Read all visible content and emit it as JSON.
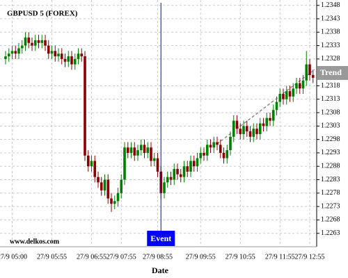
{
  "chart_data": {
    "type": "candlestick",
    "title": "GBPUSD 5 (FOREX)",
    "x_label": "Date",
    "watermark": "www.delkos.com",
    "event": {
      "index": 47,
      "label": "Event",
      "color": "#0000ff"
    },
    "trend_label": "Trend",
    "up_color": "#008000",
    "down_color": "#8b0000",
    "grid": true,
    "ylim": [
      1.2258,
      1.235
    ],
    "yticks": [
      1.2263,
      1.2268,
      1.2273,
      1.2278,
      1.2283,
      1.2288,
      1.2293,
      1.2298,
      1.2303,
      1.2308,
      1.2313,
      1.2318,
      1.2328,
      1.2333,
      1.2338,
      1.2343,
      1.2348
    ],
    "categories": [
      null,
      null,
      "27/9 05:00",
      null,
      null,
      null,
      null,
      null,
      null,
      null,
      null,
      null,
      null,
      null,
      "27/9 05:55",
      null,
      null,
      null,
      null,
      null,
      null,
      null,
      null,
      null,
      null,
      null,
      "27/9 06:55",
      null,
      null,
      null,
      null,
      null,
      null,
      null,
      null,
      "27/9 07:55",
      null,
      null,
      null,
      null,
      null,
      null,
      null,
      null,
      null,
      null,
      "27/9 08:55",
      null,
      null,
      null,
      null,
      null,
      null,
      null,
      null,
      null,
      null,
      null,
      null,
      "27/9 09:55",
      null,
      null,
      null,
      null,
      null,
      null,
      null,
      null,
      null,
      null,
      null,
      "27/9 10:55",
      null,
      null,
      null,
      null,
      null,
      null,
      null,
      null,
      null,
      null,
      null,
      "27/9 11:55",
      null,
      null,
      null,
      null,
      null,
      null,
      null,
      null,
      "27/9 12:55",
      null
    ],
    "open": [
      1.2328,
      1.2329,
      1.233,
      1.2331,
      1.233,
      1.2332,
      1.2333,
      1.2336,
      1.2334,
      1.2333,
      1.2335,
      1.2334,
      1.2335,
      1.2333,
      1.233,
      1.2331,
      1.2329,
      1.233,
      1.2328,
      1.2327,
      1.2329,
      1.2326,
      1.2328,
      1.233,
      1.2329,
      1.2292,
      1.2288,
      1.229,
      1.2284,
      1.2282,
      1.2279,
      1.2283,
      1.2276,
      1.2274,
      1.2275,
      1.2278,
      1.2283,
      1.2295,
      1.2293,
      1.2295,
      1.2292,
      1.2294,
      1.2296,
      1.2293,
      1.2295,
      1.229,
      1.2291,
      1.2286,
      1.2278,
      1.2282,
      1.2284,
      1.2283,
      1.2287,
      1.2285,
      1.2284,
      1.2288,
      1.2286,
      1.229,
      1.2288,
      1.2291,
      1.2293,
      1.2292,
      1.2296,
      1.2295,
      1.2297,
      1.2296,
      1.2293,
      1.2291,
      1.2294,
      1.2299,
      1.2305,
      1.2302,
      1.23,
      1.2303,
      1.2301,
      1.2299,
      1.2302,
      1.23,
      1.2304,
      1.2303,
      1.2306,
      1.2305,
      1.2309,
      1.2312,
      1.2315,
      1.2313,
      1.2316,
      1.2314,
      1.2317,
      1.2319,
      1.2317,
      1.232,
      1.2326,
      1.2322
    ],
    "high": [
      1.2331,
      1.2332,
      1.2333,
      1.2333,
      1.2334,
      1.2335,
      1.2338,
      1.2338,
      1.2336,
      1.2337,
      1.2337,
      1.2337,
      1.2337,
      1.2335,
      1.2333,
      1.2333,
      1.2332,
      1.2332,
      1.233,
      1.2331,
      1.2331,
      1.233,
      1.2332,
      1.2332,
      1.2331,
      1.2294,
      1.2292,
      1.2292,
      1.2286,
      1.2284,
      1.2285,
      1.2285,
      1.2278,
      1.2277,
      1.228,
      1.2285,
      1.2297,
      1.2297,
      1.2297,
      1.2297,
      1.2296,
      1.2298,
      1.2298,
      1.2297,
      1.2297,
      1.2293,
      1.2293,
      1.2288,
      1.2284,
      1.2286,
      1.2286,
      1.2289,
      1.2289,
      1.2287,
      1.229,
      1.229,
      1.2292,
      1.2292,
      1.2293,
      1.2295,
      1.2295,
      1.2298,
      1.2298,
      1.2299,
      1.2299,
      1.2298,
      1.2295,
      1.2296,
      1.2301,
      1.2307,
      1.2307,
      1.2304,
      1.2305,
      1.2305,
      1.2303,
      1.2304,
      1.2304,
      1.2306,
      1.2306,
      1.2308,
      1.2308,
      1.2311,
      1.2314,
      1.2317,
      1.2317,
      1.2318,
      1.2318,
      1.2319,
      1.2321,
      1.2321,
      1.2322,
      1.2331,
      1.2328,
      1.2324
    ],
    "low": [
      1.2326,
      1.2327,
      1.2328,
      1.2328,
      1.2328,
      1.233,
      1.2331,
      1.2332,
      1.2331,
      1.2331,
      1.2332,
      1.2332,
      1.2331,
      1.2328,
      1.2328,
      1.2327,
      1.2327,
      1.2326,
      1.2325,
      1.2325,
      1.2324,
      1.2324,
      1.2326,
      1.2327,
      1.229,
      1.2286,
      1.2286,
      1.2282,
      1.228,
      1.2277,
      1.2277,
      1.2274,
      1.2271,
      1.2272,
      1.2273,
      1.2276,
      1.2281,
      1.2291,
      1.2291,
      1.229,
      1.229,
      1.2292,
      1.2291,
      1.2291,
      1.2288,
      1.2288,
      1.2284,
      1.2276,
      1.2276,
      1.228,
      1.2281,
      1.2281,
      1.2283,
      1.2282,
      1.2282,
      1.2284,
      1.2284,
      1.2286,
      1.2286,
      1.2289,
      1.229,
      1.229,
      1.2293,
      1.2293,
      1.2294,
      1.2291,
      1.2289,
      1.2289,
      1.2292,
      1.2297,
      1.23,
      1.2298,
      1.2298,
      1.2299,
      1.2297,
      1.2297,
      1.2298,
      1.2298,
      1.2301,
      1.2301,
      1.2303,
      1.2303,
      1.2307,
      1.231,
      1.2311,
      1.2311,
      1.2312,
      1.2312,
      1.2315,
      1.2315,
      1.2315,
      1.2318,
      1.232,
      1.2319
    ],
    "close": [
      1.2329,
      1.233,
      1.2331,
      1.233,
      1.2332,
      1.2333,
      1.2336,
      1.2334,
      1.2333,
      1.2335,
      1.2334,
      1.2335,
      1.2333,
      1.233,
      1.2331,
      1.2329,
      1.233,
      1.2328,
      1.2327,
      1.2329,
      1.2326,
      1.2328,
      1.233,
      1.2329,
      1.2292,
      1.2288,
      1.229,
      1.2284,
      1.2282,
      1.2279,
      1.2283,
      1.2276,
      1.2274,
      1.2275,
      1.2278,
      1.2283,
      1.2295,
      1.2293,
      1.2295,
      1.2292,
      1.2294,
      1.2296,
      1.2293,
      1.2295,
      1.229,
      1.2291,
      1.2286,
      1.2278,
      1.2282,
      1.2284,
      1.2283,
      1.2287,
      1.2285,
      1.2284,
      1.2288,
      1.2286,
      1.229,
      1.2288,
      1.2291,
      1.2293,
      1.2292,
      1.2296,
      1.2295,
      1.2297,
      1.2296,
      1.2293,
      1.2291,
      1.2294,
      1.2299,
      1.2305,
      1.2302,
      1.23,
      1.2303,
      1.2301,
      1.2299,
      1.2302,
      1.23,
      1.2304,
      1.2303,
      1.2306,
      1.2305,
      1.2309,
      1.2312,
      1.2315,
      1.2313,
      1.2316,
      1.2314,
      1.2317,
      1.2319,
      1.2317,
      1.232,
      1.2326,
      1.2322,
      1.2321
    ]
  }
}
